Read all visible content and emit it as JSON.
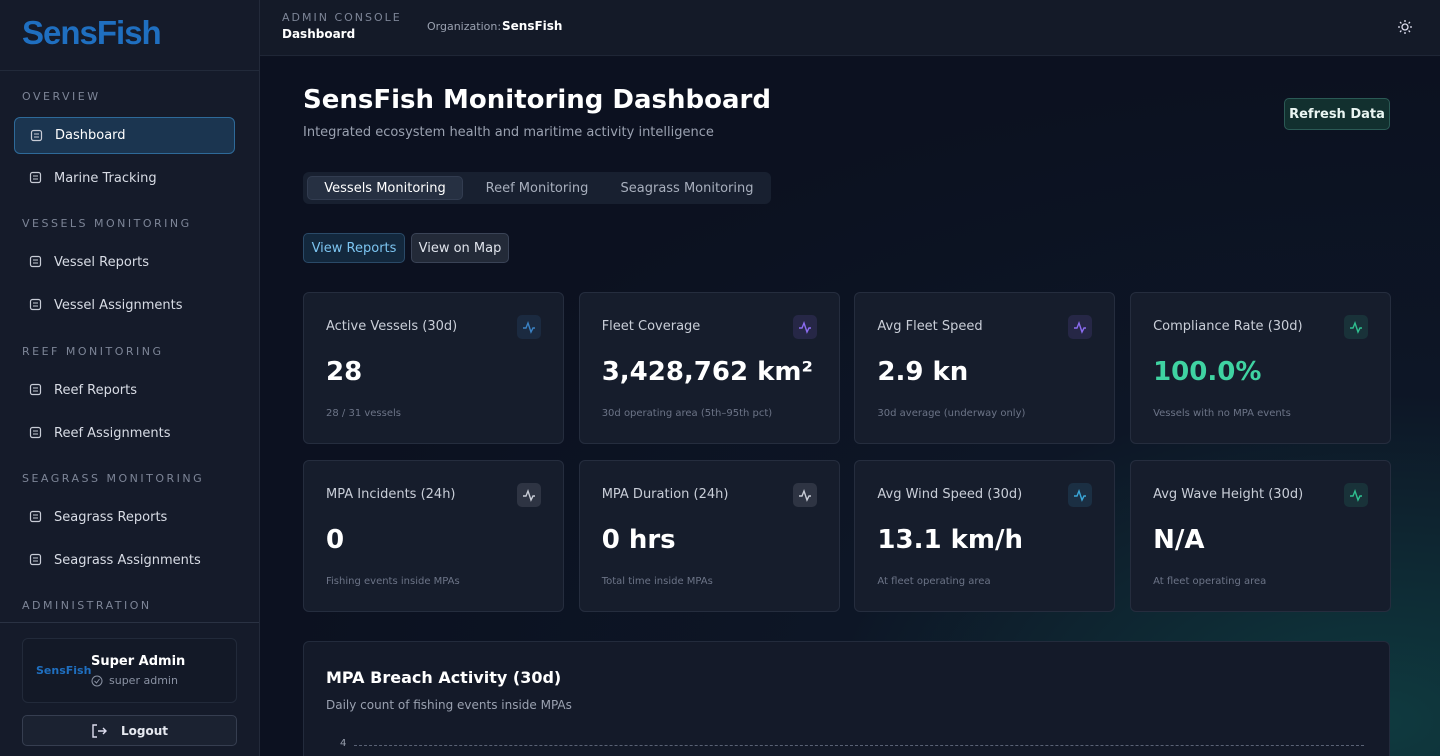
{
  "brand": "SensFish",
  "header": {
    "console_label": "ADMIN CONSOLE",
    "page": "Dashboard",
    "org_label": "Organization:",
    "org": "SensFish"
  },
  "sidebar": {
    "sections": [
      {
        "title": "OVERVIEW",
        "items": [
          "Dashboard",
          "Marine Tracking"
        ]
      },
      {
        "title": "VESSELS MONITORING",
        "items": [
          "Vessel Reports",
          "Vessel Assignments"
        ]
      },
      {
        "title": "REEF MONITORING",
        "items": [
          "Reef Reports",
          "Reef Assignments"
        ]
      },
      {
        "title": "SEAGRASS MONITORING",
        "items": [
          "Seagrass Reports",
          "Seagrass Assignments"
        ]
      },
      {
        "title": "ADMINISTRATION",
        "items": []
      }
    ],
    "user": {
      "logo": "SensFish",
      "name": "Super Admin",
      "role": "super admin"
    },
    "logout": "Logout"
  },
  "main": {
    "title": "SensFish Monitoring Dashboard",
    "subtitle": "Integrated ecosystem health and maritime activity intelligence",
    "refresh": "Refresh Data",
    "tabs": [
      "Vessels Monitoring",
      "Reef Monitoring",
      "Seagrass Monitoring"
    ],
    "actions": [
      "View Reports",
      "View on Map"
    ],
    "cards": [
      {
        "label": "Active Vessels (30d)",
        "value": "28",
        "note": "28 / 31 vessels"
      },
      {
        "label": "Fleet Coverage",
        "value": "3,428,762 km²",
        "note": "30d operating area (5th–95th pct)"
      },
      {
        "label": "Avg Fleet Speed",
        "value": "2.9 kn",
        "note": "30d average (underway only)"
      },
      {
        "label": "Compliance Rate (30d)",
        "value": "100.0%",
        "note": "Vessels with no MPA events"
      },
      {
        "label": "MPA Incidents (24h)",
        "value": "0",
        "note": "Fishing events inside MPAs"
      },
      {
        "label": "MPA Duration (24h)",
        "value": "0 hrs",
        "note": "Total time inside MPAs"
      },
      {
        "label": "Avg Wind Speed (30d)",
        "value": "13.1 km/h",
        "note": "At fleet operating area"
      },
      {
        "label": "Avg Wave Height (30d)",
        "value": "N/A",
        "note": "At fleet operating area"
      }
    ],
    "chart": {
      "title": "MPA Breach Activity (30d)",
      "subtitle": "Daily count of fishing events inside MPAs",
      "yticks": [
        4
      ]
    }
  }
}
